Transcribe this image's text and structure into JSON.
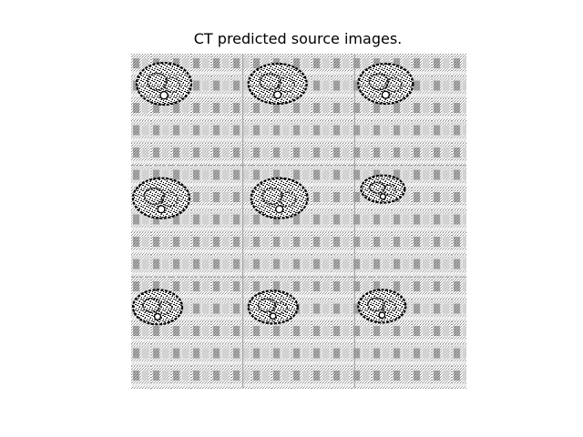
{
  "title": "CT predicted source images.",
  "grid": {
    "rows": 3,
    "cols": 3
  },
  "colors": {
    "background": "#ffffff",
    "ink": "#000000",
    "light": "#f4f4f4"
  }
}
